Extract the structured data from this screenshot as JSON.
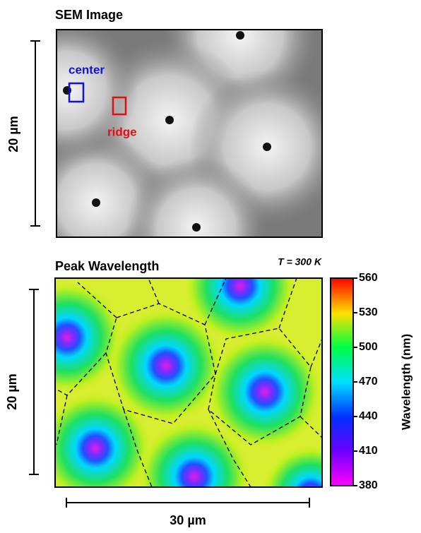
{
  "sem": {
    "title": "SEM Image",
    "scale_bar": "20 µm",
    "center_label": "center",
    "ridge_label": "ridge"
  },
  "map": {
    "title": "Peak Wavelength",
    "temperature": "T = 300 K",
    "scale_bar_y": "20 µm",
    "scale_bar_x": "30 µm",
    "colorbar": {
      "label": "Wavelength (nm)",
      "lim": [
        380,
        560
      ],
      "ticks": [
        380,
        410,
        440,
        470,
        500,
        530,
        560
      ]
    }
  }
}
